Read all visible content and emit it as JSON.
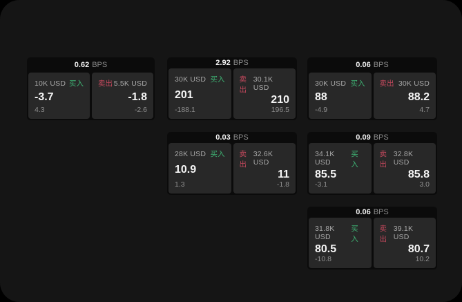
{
  "labels": {
    "bps_unit": "BPS",
    "buy": "买入",
    "sell": "卖出"
  },
  "colors": {
    "buy_green": "#3eb273",
    "sell_red": "#c2485c",
    "background": "#151515",
    "card_background": "#0b0b0b",
    "panel_background": "#282828"
  },
  "cards": [
    {
      "bps": "0.62",
      "buy": {
        "size": "10K USD",
        "value": "-3.7",
        "sub": "4.3"
      },
      "sell": {
        "size": "5.5K USD",
        "value": "-1.8",
        "sub": "-2.6"
      }
    },
    {
      "bps": "2.92",
      "buy": {
        "size": "30K USD",
        "value": "201",
        "sub": "-188.1"
      },
      "sell": {
        "size": "30.1K USD",
        "value": "210",
        "sub": "196.5"
      }
    },
    {
      "bps": "0.06",
      "buy": {
        "size": "30K USD",
        "value": "88",
        "sub": "-4.9"
      },
      "sell": {
        "size": "30K USD",
        "value": "88.2",
        "sub": "4.7"
      }
    },
    {
      "bps": "0.03",
      "buy": {
        "size": "28K USD",
        "value": "10.9",
        "sub": "1.3"
      },
      "sell": {
        "size": "32.6K USD",
        "value": "11",
        "sub": "-1.8"
      }
    },
    {
      "bps": "0.09",
      "buy": {
        "size": "34.1K USD",
        "value": "85.5",
        "sub": "-3.1"
      },
      "sell": {
        "size": "32.8K USD",
        "value": "85.8",
        "sub": "3.0"
      }
    },
    {
      "bps": "0.06",
      "buy": {
        "size": "31.8K USD",
        "value": "80.5",
        "sub": "-10.8"
      },
      "sell": {
        "size": "39.1K USD",
        "value": "80.7",
        "sub": "10.2"
      }
    }
  ]
}
